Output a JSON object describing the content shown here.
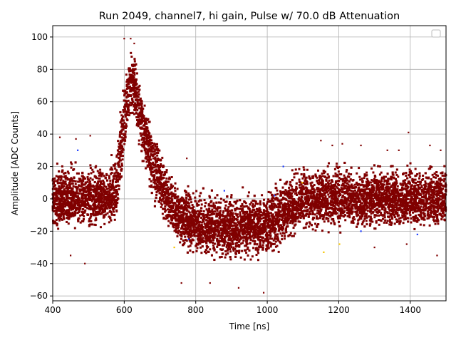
{
  "chart_data": {
    "type": "scatter",
    "title": "Run 2049, channel7, hi gain, Pulse w/ 70.0 dB Attenuation",
    "xlabel": "Time [ns]",
    "ylabel": "Amplitude [ADC Counts]",
    "xlim": [
      400,
      1500
    ],
    "ylim": [
      -63,
      107
    ],
    "xticks": [
      400,
      600,
      800,
      1000,
      1200,
      1400
    ],
    "yticks": [
      -60,
      -40,
      -20,
      0,
      20,
      40,
      60,
      80,
      100
    ],
    "grid": true,
    "legend": {
      "placement": "top-right",
      "entries": []
    },
    "series": [
      {
        "color": "#800000",
        "marker_size": "small",
        "envelope": {
          "x": [
            400,
            560,
            580,
            595,
            610,
            620,
            630,
            650,
            680,
            720,
            760,
            800,
            850,
            900,
            950,
            1000,
            1030,
            1060,
            1100,
            1200,
            1300,
            1400,
            1500
          ],
          "upper": [
            25,
            25,
            38,
            70,
            90,
            97,
            92,
            70,
            45,
            22,
            12,
            10,
            8,
            8,
            8,
            10,
            15,
            22,
            25,
            25,
            25,
            25,
            25
          ],
          "lower": [
            -22,
            -22,
            -18,
            5,
            35,
            45,
            40,
            18,
            -8,
            -22,
            -32,
            -38,
            -40,
            -42,
            -42,
            -40,
            -35,
            -28,
            -22,
            -22,
            -22,
            -22,
            -22
          ],
          "mean": [
            0,
            0,
            8,
            40,
            65,
            75,
            68,
            48,
            22,
            0,
            -12,
            -16,
            -17,
            -18,
            -18,
            -17,
            -12,
            -5,
            0,
            0,
            0,
            0,
            0
          ]
        },
        "outliers": [
          [
            420,
            38
          ],
          [
            465,
            37
          ],
          [
            505,
            39
          ],
          [
            775,
            25
          ],
          [
            1150,
            36
          ],
          [
            1182,
            33
          ],
          [
            1210,
            34
          ],
          [
            1262,
            33
          ],
          [
            1336,
            30
          ],
          [
            1368,
            30
          ],
          [
            1395,
            41
          ],
          [
            1455,
            33
          ],
          [
            600,
            99
          ],
          [
            618,
            99
          ],
          [
            628,
            96
          ],
          [
            920,
            -55
          ],
          [
            990,
            -58
          ],
          [
            760,
            -52
          ],
          [
            840,
            -52
          ],
          [
            450,
            -35
          ],
          [
            490,
            -40
          ],
          [
            1300,
            -30
          ],
          [
            1390,
            -28
          ],
          [
            1475,
            -35
          ],
          [
            1485,
            30
          ]
        ]
      },
      {
        "color": "#1f3fff",
        "outliers": [
          [
            1020,
            2
          ],
          [
            1045,
            20
          ],
          [
            1262,
            -20
          ],
          [
            880,
            5
          ],
          [
            1420,
            -22
          ],
          [
            470,
            30
          ],
          [
            780,
            -25
          ]
        ]
      },
      {
        "color": "#f5c400",
        "outliers": [
          [
            1202,
            -28
          ],
          [
            1098,
            10
          ],
          [
            1158,
            -33
          ],
          [
            740,
            -30
          ]
        ]
      }
    ]
  }
}
